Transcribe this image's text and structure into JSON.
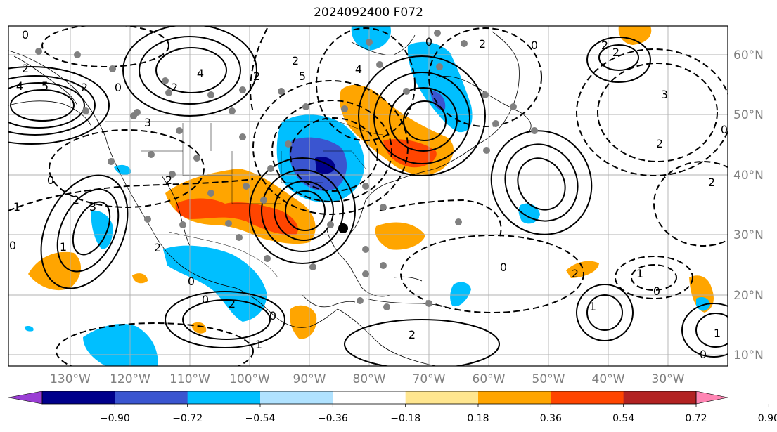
{
  "title": "2024092400 F072",
  "lon_labels": [
    "130°W",
    "120°W",
    "110°W",
    "100°W",
    "90°W",
    "80°W",
    "70°W",
    "60°W",
    "50°W",
    "40°W",
    "30°W"
  ],
  "lat_labels": [
    "60°N",
    "50°N",
    "40°N",
    "30°N",
    "20°N",
    "10°N"
  ],
  "colorbar": {
    "tick_labels": [
      "−0.90",
      "−0.72",
      "−0.54",
      "−0.36",
      "−0.18",
      "0.18",
      "0.36",
      "0.54",
      "0.72",
      "0.90"
    ],
    "colors": [
      "#9a3ed4",
      "#00008b",
      "#3a55d0",
      "#00bfff",
      "#b0e2ff",
      "#ffffff",
      "#ffe68f",
      "#ffa500",
      "#ff4500",
      "#b22222",
      "#ff85b3"
    ]
  },
  "contour_labels": [
    "0",
    "2",
    "4",
    "5",
    "2",
    "0",
    "2",
    "3",
    "4",
    "2",
    "5",
    "4",
    "2",
    "0",
    "2",
    "0",
    "2",
    "3",
    "2",
    "0",
    "2",
    "0",
    "1",
    "2",
    "3",
    "0",
    "1",
    "2",
    "0",
    "0",
    "2",
    "0",
    "1",
    "2",
    "0",
    "2",
    "1",
    "1",
    "0",
    "1",
    "0",
    "2",
    "2"
  ],
  "colors": {
    "grid": "#b0b0b0",
    "axis_text": "#808080",
    "coast": "#000000"
  }
}
